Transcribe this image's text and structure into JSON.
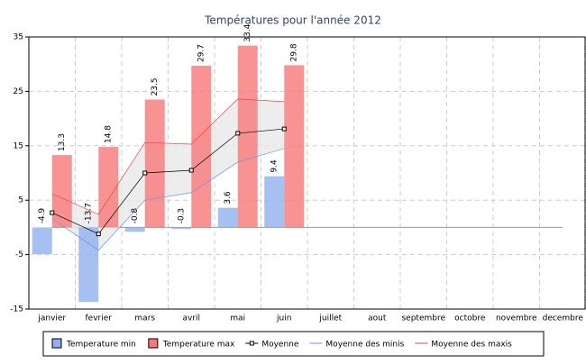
{
  "chart_data": {
    "type": "bar",
    "title": "Températures pour l'année 2012",
    "categories": [
      "janvier",
      "fevrier",
      "mars",
      "avril",
      "mai",
      "juin",
      "juillet",
      "aout",
      "septembre",
      "octobre",
      "novembre",
      "decembre"
    ],
    "series": [
      {
        "name": "Temperature min",
        "color": "#8fb0ee",
        "kind": "bar",
        "values": [
          -4.9,
          -13.7,
          -0.8,
          -0.3,
          3.6,
          9.4,
          null,
          null,
          null,
          null,
          null,
          null
        ]
      },
      {
        "name": "Temperature max",
        "color": "#f87878",
        "kind": "bar",
        "values": [
          13.3,
          14.8,
          23.5,
          29.7,
          33.4,
          29.8,
          null,
          null,
          null,
          null,
          null,
          null
        ]
      },
      {
        "name": "Moyenne",
        "color": "#000000",
        "kind": "line",
        "marker": true,
        "values": [
          2.7,
          -1.2,
          10.0,
          10.5,
          17.3,
          18.1,
          null,
          null,
          null,
          null,
          null,
          null
        ]
      },
      {
        "name": "Moyenne des minis",
        "color": "#6a94ee",
        "kind": "line",
        "values": [
          1.6,
          -4.2,
          5.0,
          6.4,
          12.0,
          14.5,
          null,
          null,
          null,
          null,
          null,
          null
        ]
      },
      {
        "name": "Moyenne des maxis",
        "color": "#ee4444",
        "kind": "line",
        "values": [
          6.2,
          2.4,
          15.6,
          15.3,
          23.6,
          23.1,
          null,
          null,
          null,
          null,
          null,
          null
        ]
      }
    ],
    "ylim": [
      -15,
      35
    ],
    "yticks": [
      -15,
      -5,
      5,
      15,
      25,
      35
    ],
    "grid": true
  }
}
